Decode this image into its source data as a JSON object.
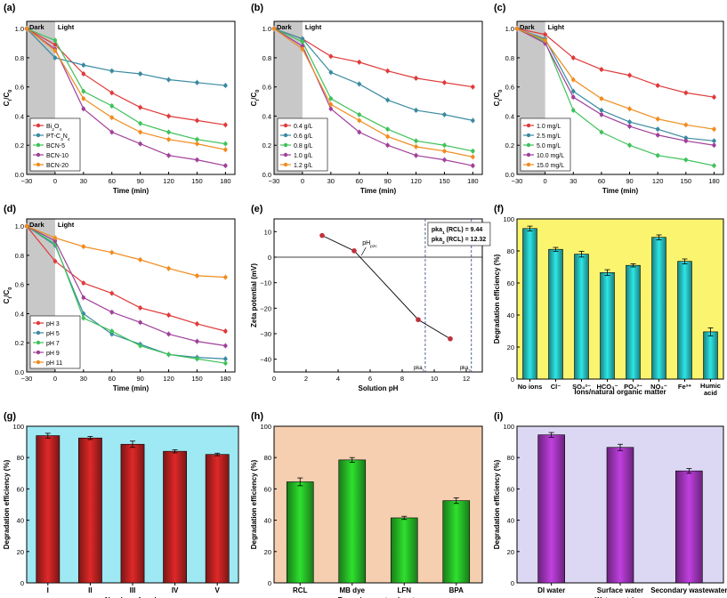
{
  "figure": {
    "background": "#ffffff"
  },
  "chart_data": [
    {
      "id": "a",
      "panel_label": "(a)",
      "type": "line",
      "xlabel": "Time (min)",
      "ylabel": "C/C0",
      "xlim": [
        -30,
        190
      ],
      "ylim": [
        0,
        1.05
      ],
      "xticks": [
        -30,
        0,
        30,
        60,
        90,
        120,
        150,
        180
      ],
      "yticks": [
        0.0,
        0.2,
        0.4,
        0.6,
        0.8,
        1.0
      ],
      "x": [
        -30,
        0,
        30,
        60,
        90,
        120,
        150,
        180
      ],
      "dark_label": "Dark",
      "light_label": "Light",
      "legend_position": "bottom-left",
      "series": [
        {
          "name": "Bi2O4",
          "color": "#e03a3a",
          "values": [
            1.0,
            0.89,
            0.69,
            0.56,
            0.46,
            0.4,
            0.37,
            0.34
          ]
        },
        {
          "name": "PT-C3N4",
          "color": "#3a8aa0",
          "values": [
            1.0,
            0.8,
            0.75,
            0.71,
            0.69,
            0.65,
            0.63,
            0.61
          ]
        },
        {
          "name": "BCN-5",
          "color": "#3ec25a",
          "values": [
            1.0,
            0.92,
            0.57,
            0.47,
            0.35,
            0.29,
            0.24,
            0.21
          ]
        },
        {
          "name": "BCN-10",
          "color": "#a0409a",
          "values": [
            1.0,
            0.86,
            0.45,
            0.29,
            0.21,
            0.13,
            0.1,
            0.06
          ]
        },
        {
          "name": "BCN-20",
          "color": "#f08c1e",
          "values": [
            1.0,
            0.85,
            0.52,
            0.39,
            0.29,
            0.24,
            0.21,
            0.17
          ]
        }
      ]
    },
    {
      "id": "b",
      "panel_label": "(b)",
      "type": "line",
      "xlabel": "Time (min)",
      "ylabel": "",
      "xlim": [
        -30,
        190
      ],
      "ylim": [
        0,
        1.05
      ],
      "xticks": [
        -30,
        0,
        30,
        60,
        90,
        120,
        150,
        180
      ],
      "yticks": [
        0.0,
        0.2,
        0.4,
        0.6,
        0.8,
        1.0
      ],
      "x": [
        -30,
        0,
        30,
        60,
        90,
        120,
        150,
        180
      ],
      "dark_label": "Dark",
      "light_label": "Light",
      "legend_position": "bottom-left",
      "series": [
        {
          "name": "0.4 g/L",
          "color": "#e03a3a",
          "values": [
            1.0,
            0.93,
            0.81,
            0.77,
            0.71,
            0.66,
            0.63,
            0.6
          ]
        },
        {
          "name": "0.6 g/L",
          "color": "#3a8aa0",
          "values": [
            1.0,
            0.93,
            0.7,
            0.62,
            0.51,
            0.44,
            0.41,
            0.37
          ]
        },
        {
          "name": "0.8 g/L",
          "color": "#3ec25a",
          "values": [
            1.0,
            0.91,
            0.52,
            0.41,
            0.31,
            0.23,
            0.2,
            0.16
          ]
        },
        {
          "name": "1.0 g/L",
          "color": "#a0409a",
          "values": [
            1.0,
            0.88,
            0.45,
            0.29,
            0.2,
            0.13,
            0.1,
            0.06
          ]
        },
        {
          "name": "1.2 g/L",
          "color": "#f08c1e",
          "values": [
            1.0,
            0.86,
            0.48,
            0.37,
            0.26,
            0.19,
            0.16,
            0.12
          ]
        }
      ]
    },
    {
      "id": "c",
      "panel_label": "(c)",
      "type": "line",
      "xlabel": "Time (min)",
      "ylabel": "",
      "xlim": [
        -30,
        190
      ],
      "ylim": [
        0,
        1.05
      ],
      "xticks": [
        -30,
        0,
        30,
        60,
        90,
        120,
        150,
        180
      ],
      "yticks": [
        0.0,
        0.2,
        0.4,
        0.6,
        0.8,
        1.0
      ],
      "x": [
        -30,
        0,
        30,
        60,
        90,
        120,
        150,
        180
      ],
      "dark_label": "Dark",
      "light_label": "Light",
      "legend_position": "bottom-left",
      "series": [
        {
          "name": "1.0 mg/L",
          "color": "#e03a3a",
          "values": [
            1.0,
            0.96,
            0.8,
            0.72,
            0.68,
            0.61,
            0.56,
            0.53
          ]
        },
        {
          "name": "2.5 mg/L",
          "color": "#3a8aa0",
          "values": [
            1.0,
            0.93,
            0.57,
            0.44,
            0.36,
            0.31,
            0.25,
            0.23
          ]
        },
        {
          "name": "5.0 mg/L",
          "color": "#3ec25a",
          "values": [
            1.0,
            0.91,
            0.44,
            0.29,
            0.2,
            0.13,
            0.1,
            0.06
          ]
        },
        {
          "name": "10.0 mg/L",
          "color": "#a0409a",
          "values": [
            1.0,
            0.9,
            0.53,
            0.41,
            0.33,
            0.27,
            0.23,
            0.2
          ]
        },
        {
          "name": "15.0 mg/L",
          "color": "#f08c1e",
          "values": [
            1.0,
            0.92,
            0.65,
            0.52,
            0.45,
            0.38,
            0.34,
            0.31
          ]
        }
      ]
    },
    {
      "id": "d",
      "panel_label": "(d)",
      "type": "line",
      "xlabel": "Time (min)",
      "ylabel": "C/C0",
      "xlim": [
        -30,
        190
      ],
      "ylim": [
        0,
        1.05
      ],
      "xticks": [
        -30,
        0,
        30,
        60,
        90,
        120,
        150,
        180
      ],
      "yticks": [
        0.0,
        0.2,
        0.4,
        0.6,
        0.8,
        1.0
      ],
      "x": [
        -30,
        0,
        30,
        60,
        90,
        120,
        150,
        180
      ],
      "dark_label": "Dark",
      "light_label": "Light",
      "legend_position": "bottom-left",
      "series": [
        {
          "name": "pH 3",
          "color": "#e03a3a",
          "values": [
            1.0,
            0.76,
            0.61,
            0.54,
            0.44,
            0.39,
            0.33,
            0.28
          ]
        },
        {
          "name": "pH 5",
          "color": "#3a8aa0",
          "values": [
            1.0,
            0.87,
            0.4,
            0.26,
            0.19,
            0.12,
            0.1,
            0.09
          ]
        },
        {
          "name": "pH 7",
          "color": "#3ec25a",
          "values": [
            1.0,
            0.88,
            0.37,
            0.28,
            0.18,
            0.12,
            0.09,
            0.06
          ]
        },
        {
          "name": "pH 9",
          "color": "#a0409a",
          "values": [
            1.0,
            0.9,
            0.51,
            0.41,
            0.34,
            0.26,
            0.21,
            0.18
          ]
        },
        {
          "name": "pH 11",
          "color": "#f08c1e",
          "values": [
            1.0,
            0.92,
            0.86,
            0.82,
            0.77,
            0.71,
            0.66,
            0.65
          ]
        }
      ]
    },
    {
      "id": "e",
      "panel_label": "(e)",
      "type": "scatter",
      "xlabel": "Solution pH",
      "ylabel": "Zeta potential (mV)",
      "xlim": [
        0,
        13
      ],
      "ylim": [
        -45,
        15
      ],
      "xticks": [
        0,
        2,
        4,
        6,
        8,
        10,
        12
      ],
      "yticks": [
        10,
        0,
        -10,
        -20,
        -30,
        -40
      ],
      "x": [
        3,
        5,
        9,
        11
      ],
      "values": [
        8.5,
        2.5,
        -24.5,
        -32
      ],
      "point_color": "#c0303a",
      "pzc_label": "pHpzc",
      "pzc_x": 5.4,
      "pka1_x": 9.44,
      "pka2_x": 12.32,
      "pka1_text": "pka1 (RCL) = 9.44",
      "pka2_text": "pka2 (RCL) = 12.32",
      "pka1_axis_label": "pka1",
      "pka2_axis_label": "pka2"
    },
    {
      "id": "f",
      "panel_label": "(f)",
      "type": "bar",
      "xlabel": "Ions/natural organic matter",
      "ylabel": "Degradation efficiency (%)",
      "ylim": [
        0,
        100
      ],
      "yticks": [
        0,
        20,
        40,
        60,
        80,
        100
      ],
      "categories": [
        "No ions",
        "Cl⁻",
        "SO₄²⁻",
        "HCO₃⁻",
        "PO₄³⁻",
        "NO₃⁻",
        "Fe³⁺",
        "Humic acid"
      ],
      "values": [
        94,
        81,
        78,
        66.5,
        71,
        88.5,
        73.5,
        29.5
      ],
      "errors": [
        1.5,
        1.2,
        1.8,
        1.8,
        1.0,
        1.5,
        1.5,
        2.5
      ],
      "bar_color": "#2ee6e6",
      "background": "#fbf46f"
    },
    {
      "id": "g",
      "panel_label": "(g)",
      "type": "bar",
      "xlabel": "Number of cycle",
      "ylabel": "Degradation efficiency (%)",
      "ylim": [
        0,
        100
      ],
      "yticks": [
        0,
        20,
        40,
        60,
        80,
        100
      ],
      "categories": [
        "I",
        "II",
        "III",
        "IV",
        "V"
      ],
      "values": [
        94,
        92.5,
        88.5,
        84,
        82
      ],
      "errors": [
        1.5,
        1.0,
        2.0,
        1.0,
        0.8
      ],
      "bar_color": "#e02828",
      "background": "#9ee9f3"
    },
    {
      "id": "h",
      "panel_label": "(h)",
      "type": "bar",
      "xlabel": "Emerging contaminants",
      "ylabel": "Degradation efficiency (%)",
      "ylim": [
        0,
        100
      ],
      "yticks": [
        0,
        20,
        40,
        60,
        80,
        100
      ],
      "categories": [
        "RCL",
        "MB dye",
        "LFN",
        "BPA"
      ],
      "values": [
        64.5,
        78.5,
        41.5,
        52.5
      ],
      "errors": [
        2.5,
        1.5,
        1.0,
        1.8
      ],
      "bar_color": "#2ee02e",
      "background": "#f6ceb0"
    },
    {
      "id": "i",
      "panel_label": "(i)",
      "type": "bar",
      "xlabel": "Water matrices",
      "ylabel": "Degradation efficiency (%)",
      "ylim": [
        0,
        100
      ],
      "yticks": [
        0,
        20,
        40,
        60,
        80,
        100
      ],
      "categories": [
        "DI water",
        "Surface water",
        "Secondary wastewater"
      ],
      "values": [
        94.5,
        86.5,
        71.5
      ],
      "errors": [
        1.5,
        2.0,
        1.5
      ],
      "bar_color": "#c040e0",
      "background": "#dcd8f4"
    }
  ]
}
